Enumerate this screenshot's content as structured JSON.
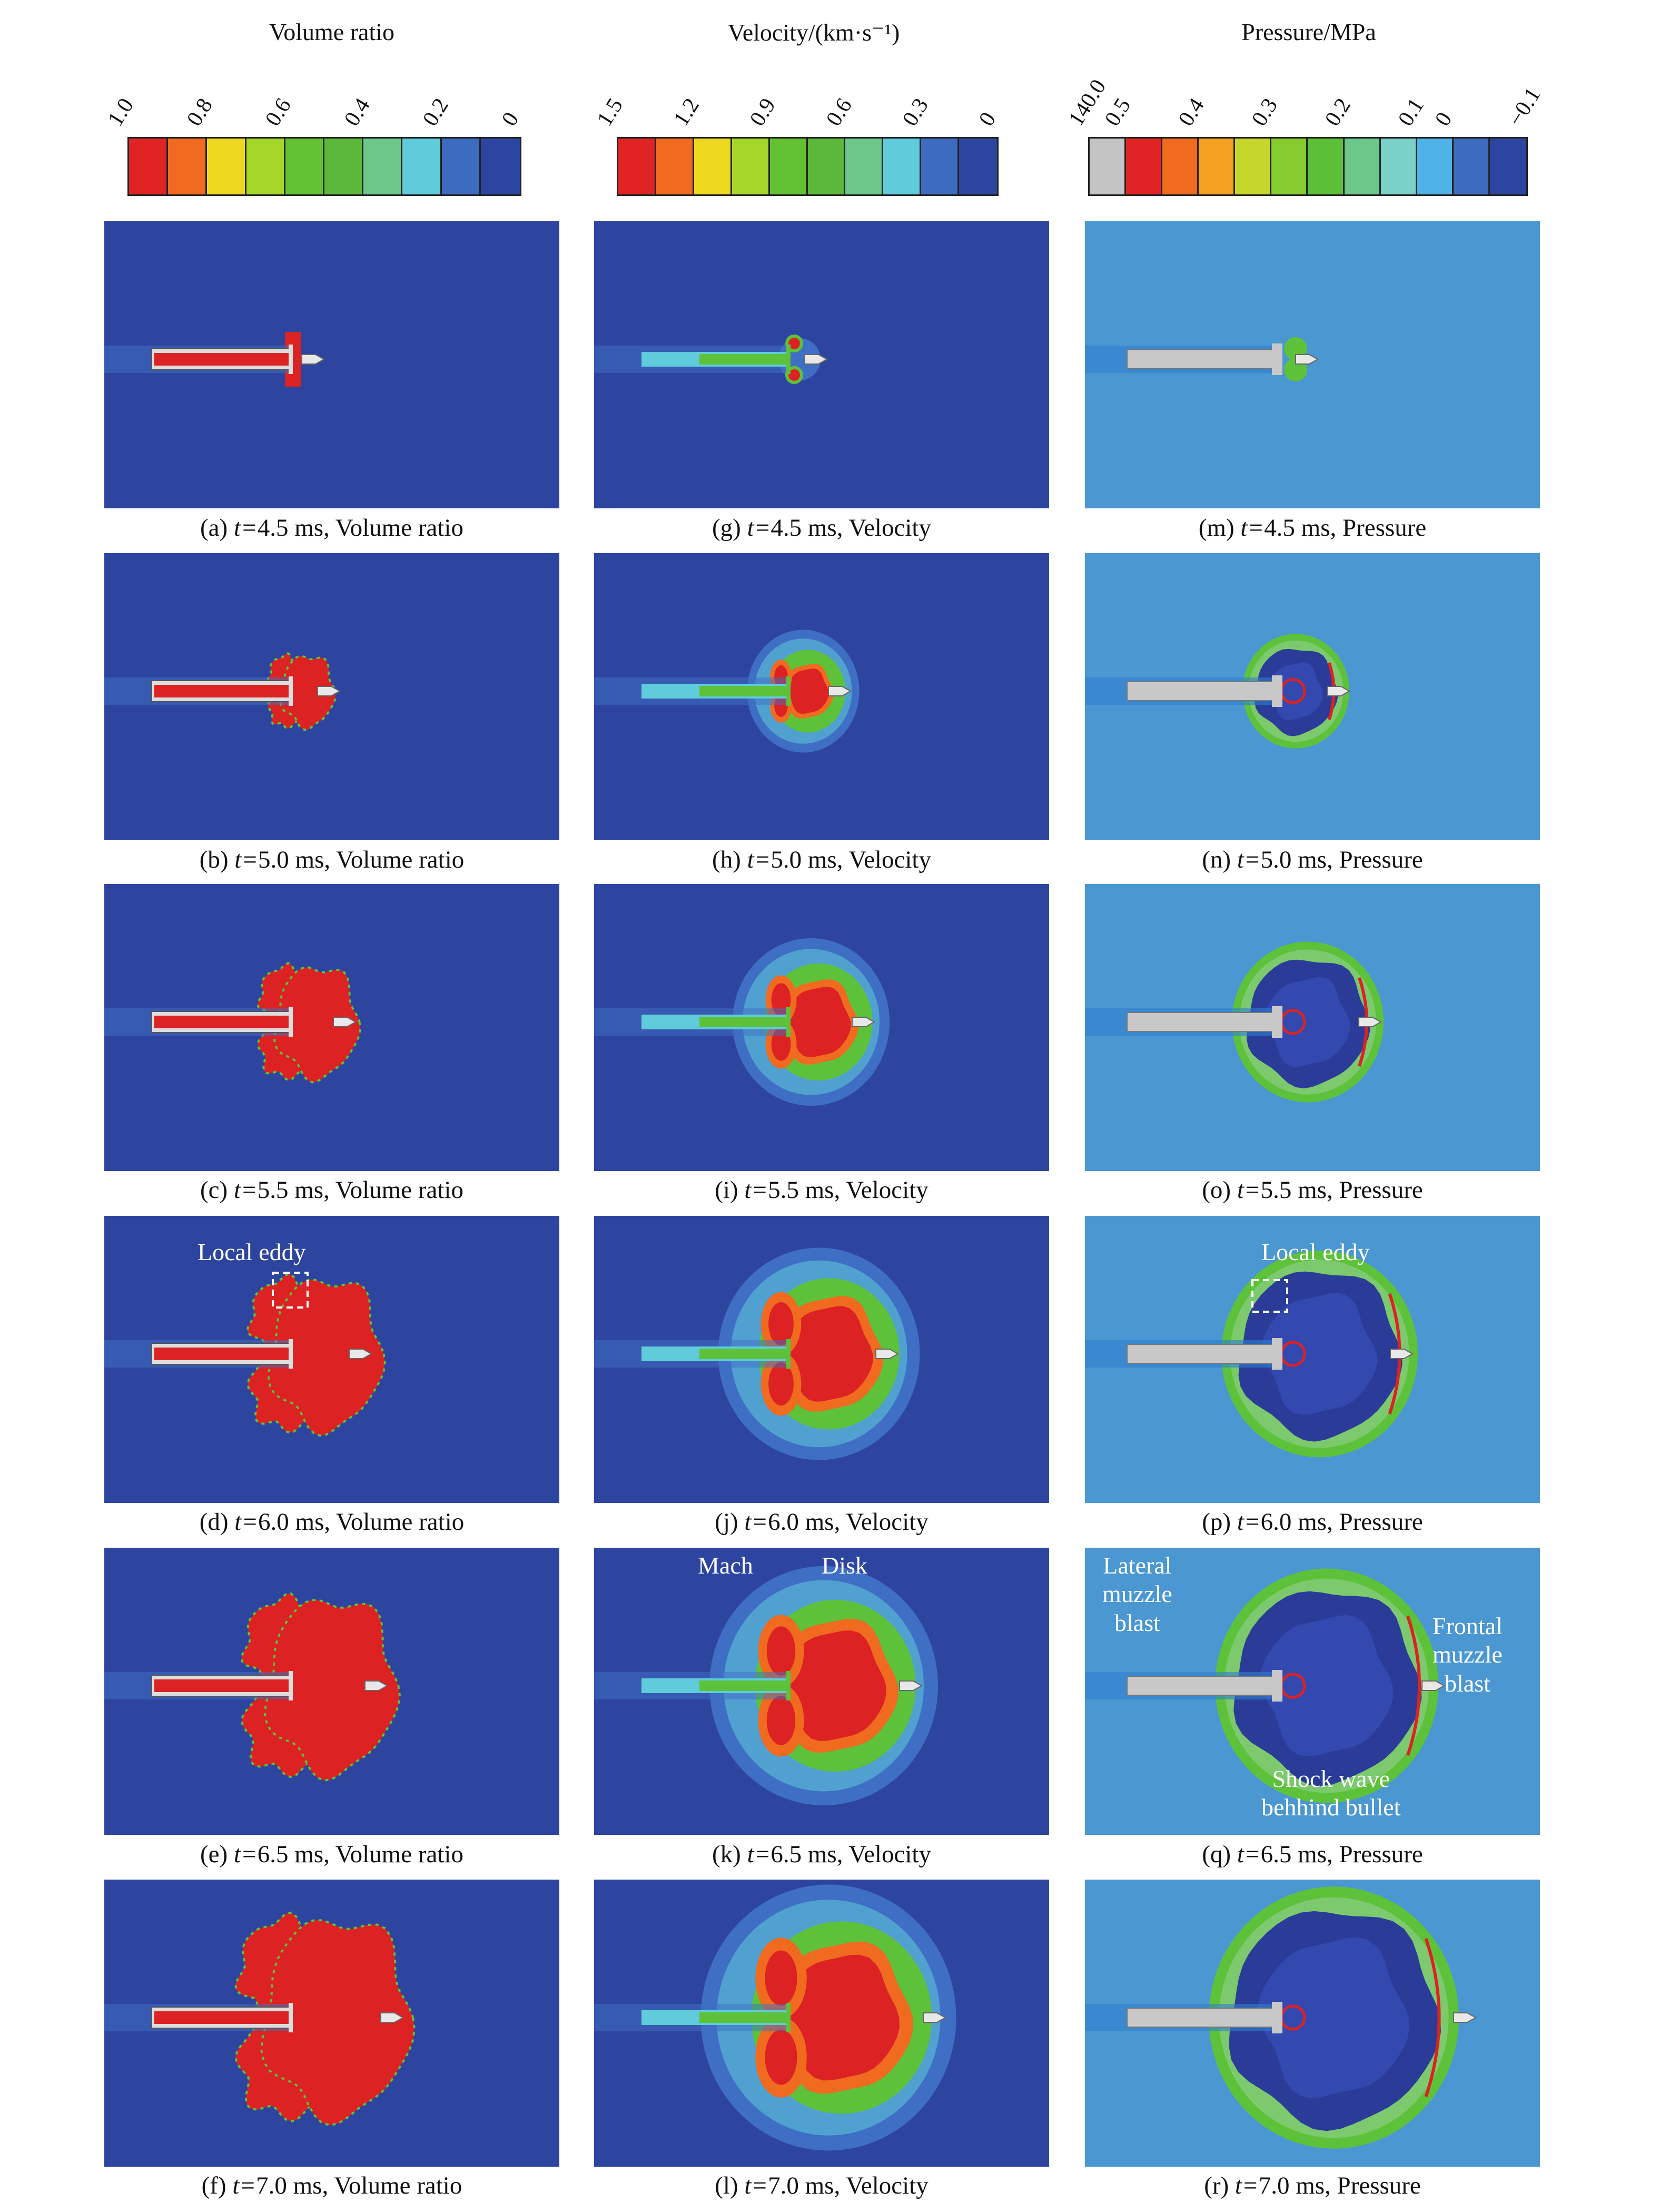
{
  "columns": [
    {
      "title": "Volume ratio",
      "ticks": [
        "1.0",
        "0.8",
        "0.6",
        "0.4",
        "0.2",
        "0"
      ],
      "swatches": [
        "#e02424",
        "#f06a20",
        "#ecd91f",
        "#a5d72b",
        "#63c232",
        "#5bb83a",
        "#6cc78a",
        "#5fcbdb",
        "#3d6bc0",
        "#2b45a0"
      ]
    },
    {
      "title": "Velocity/(km·s⁻¹)",
      "ticks": [
        "1.5",
        "1.2",
        "0.9",
        "0.6",
        "0.3",
        "0"
      ],
      "swatches": [
        "#e02424",
        "#f06a20",
        "#ecd91f",
        "#a5d72b",
        "#63c232",
        "#5bb83a",
        "#6cc78a",
        "#5fcbdb",
        "#3d6bc0",
        "#2b45a0"
      ]
    },
    {
      "title": "Pressure/MPa",
      "ticks": [
        "140.0",
        "0.5",
        "0.4",
        "0.3",
        "0.2",
        "0.1",
        "0",
        "−0.1"
      ],
      "swatches": [
        "#c4c4c4",
        "#e02424",
        "#f06a20",
        "#f4a020",
        "#c6d62a",
        "#86cc2e",
        "#5cbf38",
        "#6cc78a",
        "#79d1c8",
        "#4fb3e8",
        "#3d6bc0",
        "#2b45a0"
      ]
    }
  ],
  "captions": [
    [
      "(a) ",
      "4.5 ms, Volume ratio"
    ],
    [
      "(b) ",
      "5.0 ms, Volume ratio"
    ],
    [
      "(c) ",
      "5.5 ms, Volume ratio"
    ],
    [
      "(d) ",
      "6.0 ms, Volume ratio"
    ],
    [
      "(e) ",
      "6.5 ms, Volume ratio"
    ],
    [
      "(f) ",
      "7.0 ms, Volume ratio"
    ],
    [
      "(g) ",
      "4.5 ms, Velocity"
    ],
    [
      "(h) ",
      "5.0 ms, Velocity"
    ],
    [
      "(i) ",
      "5.5 ms, Velocity"
    ],
    [
      "(j) ",
      "6.0 ms, Velocity"
    ],
    [
      "(k) ",
      "6.5 ms, Velocity"
    ],
    [
      "(l) ",
      "7.0 ms, Velocity"
    ],
    [
      "(m) ",
      "4.5 ms, Pressure"
    ],
    [
      "(n) ",
      "5.0 ms, Pressure"
    ],
    [
      "(o) ",
      "5.5 ms, Pressure"
    ],
    [
      "(p) ",
      "6.0 ms, Pressure"
    ],
    [
      "(q) ",
      "6.5 ms, Pressure"
    ],
    [
      "(r) ",
      "7.0 ms, Pressure"
    ]
  ],
  "time_prefix": "t=",
  "annotations": {
    "local_eddy": "Local eddy",
    "mach": "Mach",
    "disk": "Disk",
    "lateral_muzzle_blast": [
      "Lateral",
      "muzzle",
      "blast"
    ],
    "frontal_muzzle_blast": [
      "Frontal",
      "muzzle",
      "blast"
    ],
    "shock_wave": [
      "Shock wave",
      "behhind bullet"
    ]
  },
  "colors": {
    "vol_bg": "#2e45a0",
    "vel_bg": "#2e45a0",
    "pres_bg": "#4a97d2",
    "red": "#dc2222",
    "orange": "#f06a20",
    "yellow": "#e8d820",
    "green": "#5dc23a",
    "cyan": "#5fcbdb",
    "lightblue": "#3f6fc4",
    "darkblue": "#2a3c98",
    "barrel": "#c8c8c8"
  }
}
